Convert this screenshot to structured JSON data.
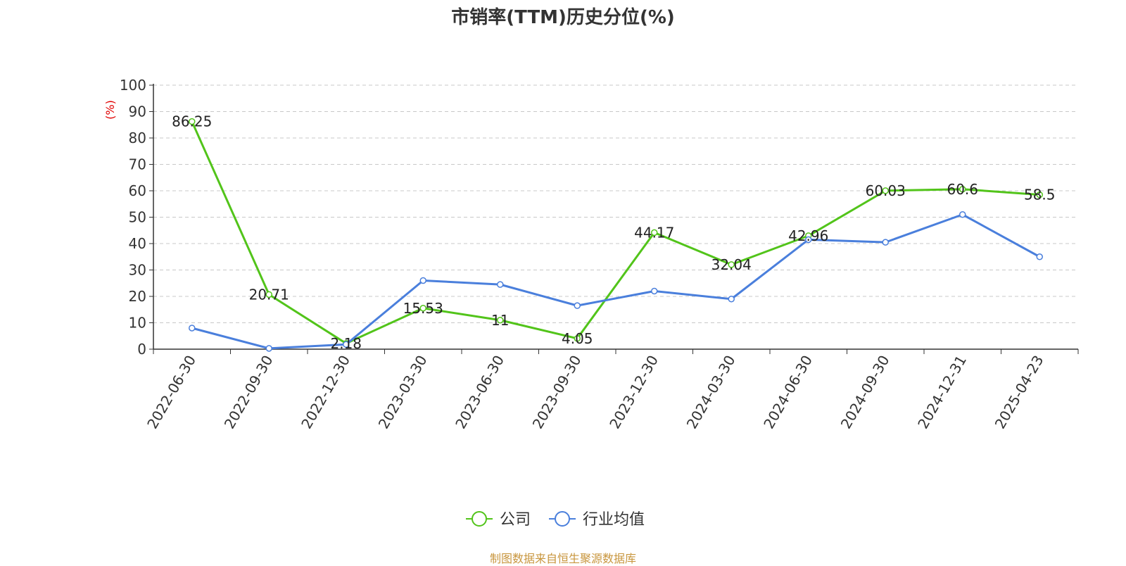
{
  "chart_data": {
    "type": "line",
    "title": "市销率(TTM)历史分位(%)",
    "ylabel": "(%)",
    "xlabel": "",
    "ylim": [
      0,
      100
    ],
    "yticks": [
      0,
      10,
      20,
      30,
      40,
      50,
      60,
      70,
      80,
      90,
      100
    ],
    "grid": true,
    "legend_position": "bottom-center",
    "categories": [
      "2022-06-30",
      "2022-09-30",
      "2022-12-30",
      "2023-03-30",
      "2023-06-30",
      "2023-09-30",
      "2023-12-30",
      "2024-03-30",
      "2024-06-30",
      "2024-09-30",
      "2024-12-31",
      "2025-04-23"
    ],
    "series": [
      {
        "name": "公司",
        "color": "#52c41a",
        "values": [
          86.25,
          20.71,
          2.18,
          15.53,
          11,
          4.05,
          44.17,
          32.04,
          42.96,
          60.03,
          60.6,
          58.5
        ],
        "labels": [
          "86.25",
          "20.71",
          "2.18",
          "15.53",
          "11",
          "4.05",
          "44.17",
          "32.04",
          "42.96",
          "60.03",
          "60.6",
          "58.5"
        ]
      },
      {
        "name": "行业均值",
        "color": "#4a7fdc",
        "values": [
          8,
          0.3,
          1.8,
          26,
          24.5,
          16.5,
          22,
          19,
          41.5,
          40.5,
          51,
          35
        ]
      }
    ]
  },
  "source": "制图数据来自恒生聚源数据库"
}
